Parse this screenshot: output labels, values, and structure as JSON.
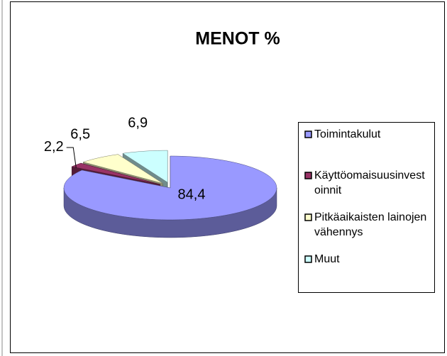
{
  "chart_data": {
    "type": "pie",
    "title": "MENOT %",
    "categories": [
      "Toimintakulut",
      "Käyttöomaisuusinvestoinnit",
      "Pitkäaikaisten lainojen vähennys",
      "Muut"
    ],
    "values": [
      84.4,
      2.2,
      6.5,
      6.9
    ],
    "value_labels": [
      "84,4",
      "2,2",
      "6,5",
      "6,9"
    ],
    "colors": [
      "#9999ff",
      "#993366",
      "#ffffcc",
      "#ccffff"
    ],
    "legend": "right"
  }
}
